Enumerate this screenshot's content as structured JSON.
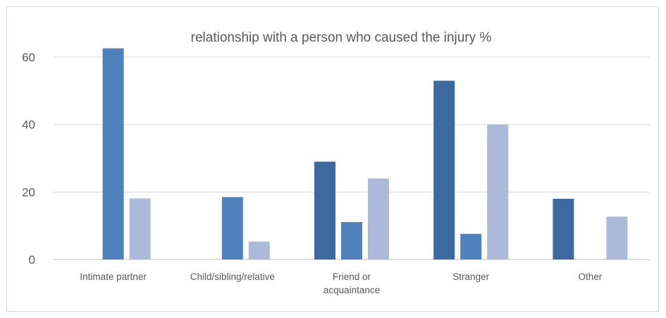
{
  "chart_data": {
    "type": "bar",
    "title": "relationship with a person who caused the injury %",
    "categories": [
      [
        "Intimate partner"
      ],
      [
        "Child/sibling/relative"
      ],
      [
        "Friend or",
        "acquaintance"
      ],
      [
        "Stranger"
      ],
      [
        "Other"
      ]
    ],
    "series": [
      {
        "values": [
          0,
          0,
          29,
          53,
          18
        ],
        "color": "#3d6a9e"
      },
      {
        "values": [
          62.6,
          18.5,
          11.1,
          7.6,
          0
        ],
        "color": "#4f81bd"
      },
      {
        "values": [
          18.1,
          5.3,
          24,
          40,
          12.7
        ],
        "color": "#abbad9"
      }
    ],
    "ylim": [
      0,
      60
    ],
    "yticks": [
      0,
      20,
      40,
      60
    ],
    "grid": true,
    "legend": "none"
  }
}
